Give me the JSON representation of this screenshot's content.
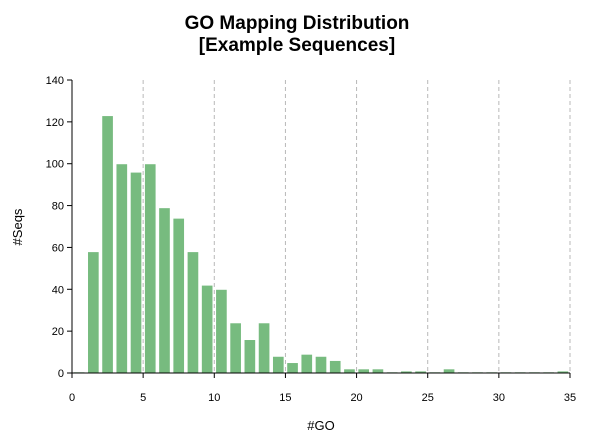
{
  "chart_data": {
    "type": "bar",
    "title": [
      "GO Mapping Distribution",
      "[Example Sequences]"
    ],
    "xlabel": "#GO",
    "ylabel": "#Seqs",
    "xlim": [
      0,
      35
    ],
    "ylim": [
      0,
      140
    ],
    "xticks": [
      0,
      5,
      10,
      15,
      20,
      25,
      30,
      35
    ],
    "yticks": [
      0,
      20,
      40,
      60,
      80,
      100,
      120,
      140
    ],
    "grid": "vertical dashed",
    "bar_color": "#77bb7f",
    "x": [
      0,
      1,
      2,
      3,
      4,
      5,
      6,
      7,
      8,
      9,
      10,
      11,
      12,
      13,
      14,
      15,
      16,
      17,
      18,
      19,
      20,
      21,
      22,
      23,
      24,
      25,
      26,
      27,
      28,
      29,
      30,
      31,
      32,
      33,
      34
    ],
    "values": [
      0,
      58,
      123,
      100,
      96,
      100,
      79,
      74,
      58,
      42,
      40,
      24,
      16,
      24,
      8,
      5,
      9,
      8,
      6,
      2,
      2,
      2,
      0,
      1,
      1,
      0,
      2,
      0,
      0,
      0,
      0,
      0,
      0,
      0,
      1
    ]
  }
}
